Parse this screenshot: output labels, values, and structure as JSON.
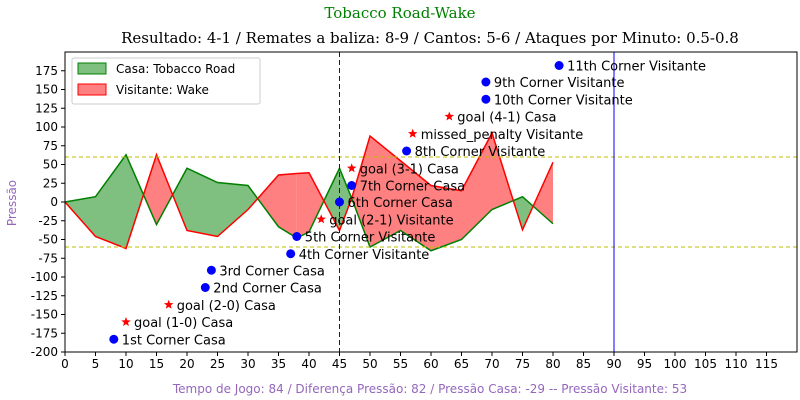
{
  "chart_data": {
    "type": "area",
    "title": "Tobacco Road-Wake",
    "subtitle": "Resultado: 4-1 / Remates a baliza: 8-9 / Cantos: 5-6 / Ataques por Minuto: 0.5-0.8",
    "ylabel": "Pressão",
    "xlabel": "Tempo de Jogo: 84 / Diferença Pressão: 82 / Pressão Casa: -29 -- Pressão Visitante: 53",
    "xlim": [
      0,
      120
    ],
    "ylim": [
      -200,
      200
    ],
    "x_ticks": [
      0,
      5,
      10,
      15,
      20,
      25,
      30,
      35,
      40,
      45,
      50,
      55,
      60,
      65,
      70,
      75,
      80,
      85,
      90,
      95,
      100,
      105,
      110,
      115
    ],
    "y_ticks": [
      -200,
      -175,
      -150,
      -125,
      -100,
      -75,
      -50,
      -25,
      0,
      25,
      50,
      75,
      100,
      125,
      150,
      175
    ],
    "legend_position": "top-left",
    "colors": {
      "home_line": "#008000",
      "home_fill": "#7fbf7f",
      "away_line": "#ff0000",
      "away_fill": "#ff8080",
      "markers": "#0000ff",
      "goal_markers": "#ff0000",
      "threshold_lines": "#bfbf00",
      "vlines": "#0000ff",
      "title": "#008000",
      "axis_labels": "#9467bd"
    },
    "series": [
      {
        "name": "Casa: Tobacco Road",
        "x": [
          0,
          5,
          10,
          15,
          20,
          25,
          30,
          35,
          38,
          40,
          45,
          47,
          50,
          55,
          60,
          65,
          70,
          75,
          80
        ],
        "y": [
          0,
          7,
          63,
          -30,
          45,
          26,
          22,
          -33,
          -48,
          -40,
          45,
          5,
          -60,
          -38,
          -65,
          -50,
          -10,
          7,
          -29
        ]
      },
      {
        "name": "Visitante: Wake",
        "x": [
          0,
          5,
          10,
          15,
          20,
          25,
          30,
          35,
          38,
          40,
          45,
          47,
          50,
          55,
          60,
          65,
          70,
          75,
          80
        ],
        "y": [
          0,
          -46,
          -62,
          63,
          -38,
          -46,
          -10,
          36,
          38,
          39,
          -38,
          5,
          88,
          55,
          22,
          15,
          92,
          -37,
          53
        ]
      }
    ],
    "threshold_lines": [
      60,
      -60
    ],
    "vertical_lines": [
      45,
      90
    ],
    "annotations": [
      {
        "label": "1st Corner Casa",
        "x": 8,
        "y": -183,
        "marker": "dot"
      },
      {
        "label": "goal (1-0) Casa",
        "x": 10,
        "y": -160,
        "marker": "star"
      },
      {
        "label": "goal (2-0) Casa",
        "x": 17,
        "y": -137,
        "marker": "star"
      },
      {
        "label": "2nd Corner Casa",
        "x": 23,
        "y": -114,
        "marker": "dot"
      },
      {
        "label": "3rd Corner Casa",
        "x": 24,
        "y": -91,
        "marker": "dot"
      },
      {
        "label": "4th Corner Visitante",
        "x": 37,
        "y": -69,
        "marker": "dot"
      },
      {
        "label": "5th Corner Visitante",
        "x": 38,
        "y": -46,
        "marker": "dot"
      },
      {
        "label": "goal (2-1) Visitante",
        "x": 42,
        "y": -23,
        "marker": "star"
      },
      {
        "label": "6th Corner Casa",
        "x": 45,
        "y": 0,
        "marker": "dot"
      },
      {
        "label": "7th Corner Casa",
        "x": 47,
        "y": 22,
        "marker": "dot"
      },
      {
        "label": "goal (3-1) Casa",
        "x": 47,
        "y": 45,
        "marker": "star"
      },
      {
        "label": "8th Corner Visitante",
        "x": 56,
        "y": 68,
        "marker": "dot"
      },
      {
        "label": "missed_penalty  Visitante",
        "x": 57,
        "y": 91,
        "marker": "star"
      },
      {
        "label": "goal (4-1) Casa",
        "x": 63,
        "y": 114,
        "marker": "star"
      },
      {
        "label": "10th Corner Visitante",
        "x": 69,
        "y": 137,
        "marker": "dot"
      },
      {
        "label": "9th Corner Visitante",
        "x": 69,
        "y": 160,
        "marker": "dot"
      },
      {
        "label": "11th Corner Visitante",
        "x": 81,
        "y": 182,
        "marker": "dot"
      }
    ]
  }
}
